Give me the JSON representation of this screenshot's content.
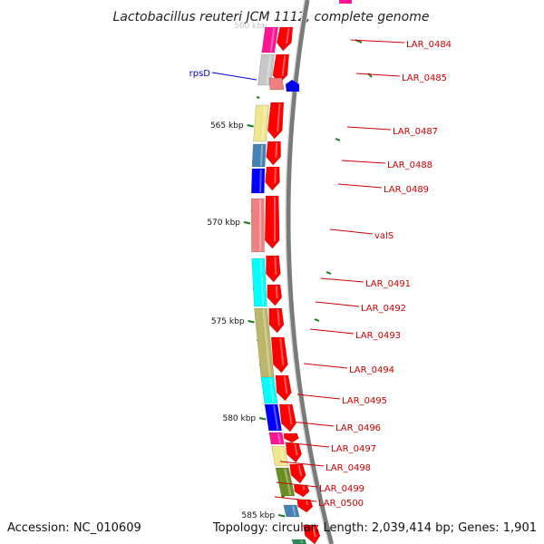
{
  "title": "Lactobacillus reuteri JCM 1112, complete genome",
  "top_cut_label": "560 kbp",
  "accession": "Accession: NC_010609",
  "topology": "Topology: circular; Length: 2,039,414 bp; Genes: 1,901",
  "colors": {
    "backbone": "#7a7a7a",
    "tick": "#1a7a1a",
    "label_red": "#cc0000",
    "label_blue": "#0000cc"
  },
  "ticks": [
    "565 kbp",
    "570 kbp",
    "575 kbp",
    "580 kbp",
    "585 kbp"
  ],
  "strand_minus_genes": [
    {
      "id": "g1",
      "color": "#ff0000"
    },
    {
      "id": "g2",
      "color": "#ff0000"
    },
    {
      "id": "g3",
      "color": "#ff0000"
    },
    {
      "id": "g4",
      "color": "#ff0000"
    },
    {
      "id": "g5",
      "color": "#ff0000"
    },
    {
      "id": "g6",
      "color": "#ff0000"
    },
    {
      "id": "g7",
      "color": "#ff0000"
    },
    {
      "id": "g8",
      "color": "#ff0000"
    },
    {
      "id": "g9",
      "color": "#ff0000"
    },
    {
      "id": "g10",
      "color": "#ff0000"
    },
    {
      "id": "g11",
      "color": "#ff0000"
    },
    {
      "id": "g12",
      "color": "#ff0000"
    },
    {
      "id": "g13",
      "color": "#ff0000"
    },
    {
      "id": "g14",
      "color": "#ff0000"
    },
    {
      "id": "g15",
      "color": "#ff0000"
    },
    {
      "id": "g16",
      "color": "#ff0000"
    },
    {
      "id": "g17",
      "color": "#ff0000"
    },
    {
      "id": "g18",
      "color": "#ff0000"
    },
    {
      "id": "g19",
      "color": "#ff0000"
    }
  ],
  "cog_genes": [
    {
      "id": "c1",
      "color": "#ff1493"
    },
    {
      "id": "c2",
      "color": "#c8c8c8"
    },
    {
      "id": "c3",
      "color": "#f0e68c"
    },
    {
      "id": "c4",
      "color": "#4682b4"
    },
    {
      "id": "c5",
      "color": "#0000ff"
    },
    {
      "id": "c6",
      "color": "#f08080"
    },
    {
      "id": "c7",
      "color": "#00ffff"
    },
    {
      "id": "c8",
      "color": "#bdb76b"
    },
    {
      "id": "c9",
      "color": "#00ffff"
    },
    {
      "id": "c10",
      "color": "#0000ff"
    },
    {
      "id": "c11",
      "color": "#ff1493"
    },
    {
      "id": "c12",
      "color": "#f0e68c"
    },
    {
      "id": "c13",
      "color": "#6b8e23"
    },
    {
      "id": "c14",
      "color": "#4682b4"
    },
    {
      "id": "c15",
      "color": "#2e8b57"
    }
  ],
  "gene_labels": [
    {
      "text": "LAR_0484",
      "color": "#cc0000"
    },
    {
      "text": "LAR_0485",
      "color": "#cc0000"
    },
    {
      "text": "LAR_0487",
      "color": "#cc0000"
    },
    {
      "text": "LAR_0488",
      "color": "#cc0000"
    },
    {
      "text": "LAR_0489",
      "color": "#cc0000"
    },
    {
      "text": "valS",
      "color": "#cc0000"
    },
    {
      "text": "LAR_0491",
      "color": "#cc0000"
    },
    {
      "text": "LAR_0492",
      "color": "#cc0000"
    },
    {
      "text": "LAR_0493",
      "color": "#cc0000"
    },
    {
      "text": "LAR_0494",
      "color": "#cc0000"
    },
    {
      "text": "LAR_0495",
      "color": "#cc0000"
    },
    {
      "text": "LAR_0496",
      "color": "#cc0000"
    },
    {
      "text": "LAR_0497",
      "color": "#cc0000"
    },
    {
      "text": "LAR_0498",
      "color": "#cc0000"
    },
    {
      "text": "LAR_0499",
      "color": "#cc0000"
    },
    {
      "text": "LAR_0500",
      "color": "#cc0000"
    },
    {
      "text": "rpsD",
      "color": "#0000cc"
    }
  ]
}
